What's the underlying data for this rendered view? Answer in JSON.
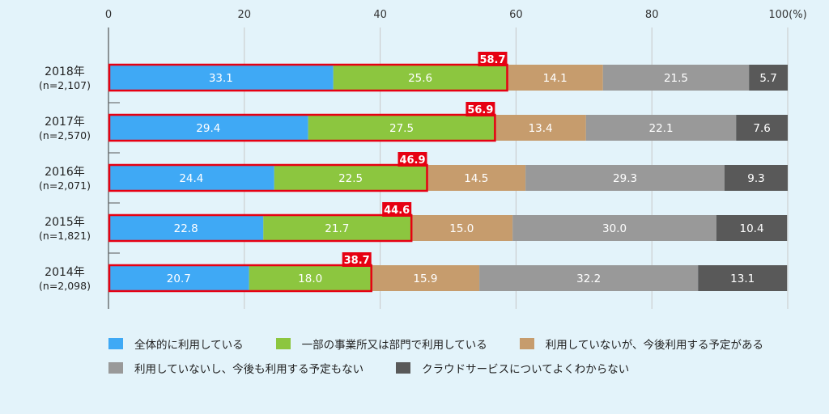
{
  "chart_data": {
    "type": "bar",
    "orientation": "horizontal",
    "stacked": true,
    "title": "",
    "xlabel": "",
    "ylabel": "",
    "xlim": [
      0,
      100
    ],
    "x_ticks": [
      "0",
      "20",
      "40",
      "60",
      "80",
      "100(%)"
    ],
    "grid": true,
    "legend_position": "bottom",
    "categories": [
      {
        "year": "2018年",
        "n": "(n=2,107)"
      },
      {
        "year": "2017年",
        "n": "(n=2,570)"
      },
      {
        "year": "2016年",
        "n": "(n=2,071)"
      },
      {
        "year": "2015年",
        "n": "(n=1,821)"
      },
      {
        "year": "2014年",
        "n": "(n=2,098)"
      }
    ],
    "series": [
      {
        "name": "全体的に利用している",
        "color": "#3fa9f5",
        "values": [
          "33.1",
          "29.4",
          "24.4",
          "22.8",
          "20.7"
        ]
      },
      {
        "name": "一部の事業所又は部門で利用している",
        "color": "#8cc63f",
        "values": [
          "25.6",
          "27.5",
          "22.5",
          "21.7",
          "18.0"
        ]
      },
      {
        "name": "利用していないが、今後利用する予定がある",
        "color": "#c69c6d",
        "values": [
          "14.1",
          "13.4",
          "14.5",
          "15.0",
          "15.9"
        ]
      },
      {
        "name": "利用していないし、今後も利用する予定もない",
        "color": "#999999",
        "values": [
          "21.5",
          "22.1",
          "29.3",
          "30.0",
          "32.2"
        ]
      },
      {
        "name": "クラウドサービスについてよくわからない",
        "color": "#595959",
        "values": [
          "5.7",
          "7.6",
          "9.3",
          "10.4",
          "13.1"
        ]
      }
    ],
    "totals_highlight": {
      "color": "#e60012",
      "values": [
        "58.7",
        "56.9",
        "46.9",
        "44.6",
        "38.7"
      ]
    }
  }
}
